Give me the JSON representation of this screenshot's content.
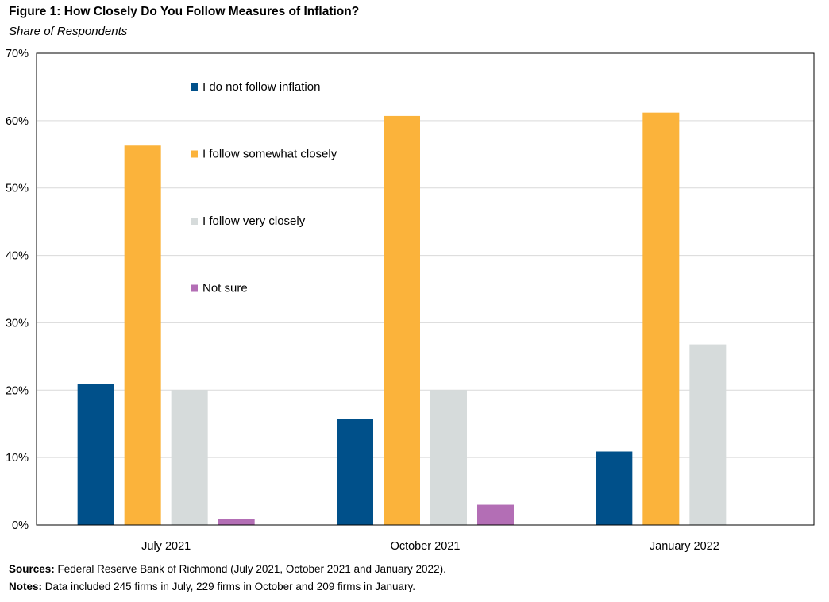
{
  "figure": {
    "title": "Figure 1: How Closely Do You Follow Measures of Inflation?",
    "subtitle": "Share of Respondents"
  },
  "footer": {
    "sources_label": "Sources:",
    "sources_text": "Federal Reserve Bank of Richmond (July 2021, October 2021 and January 2022).",
    "notes_label": "Notes:",
    "notes_text": "Data included 245 firms in July, 229 firms in October and 209 firms in January."
  },
  "chart_data": {
    "type": "bar",
    "title": "Figure 1: How Closely Do You Follow Measures of Inflation?",
    "subtitle": "Share of Respondents",
    "xlabel": "",
    "ylabel": "",
    "categories": [
      "July 2021",
      "October 2021",
      "January 2022"
    ],
    "series": [
      {
        "name": "I do not follow inflation",
        "color": "#00508a",
        "values": [
          20.9,
          15.7,
          10.9
        ]
      },
      {
        "name": "I follow somewhat closely",
        "color": "#fbb33b",
        "values": [
          56.3,
          60.7,
          61.2
        ]
      },
      {
        "name": "I follow very closely",
        "color": "#d6dbdb",
        "values": [
          20.0,
          20.0,
          26.8
        ]
      },
      {
        "name": "Not sure",
        "color": "#b36eb5",
        "values": [
          0.9,
          3.0,
          null
        ]
      }
    ],
    "ylim": [
      0,
      70
    ],
    "yticks": [
      0,
      10,
      20,
      30,
      40,
      50,
      60,
      70
    ],
    "ytick_labels": [
      "0%",
      "10%",
      "20%",
      "30%",
      "40%",
      "50%",
      "60%",
      "70%"
    ],
    "grid": true,
    "legend_position": "top-left inside plot"
  }
}
